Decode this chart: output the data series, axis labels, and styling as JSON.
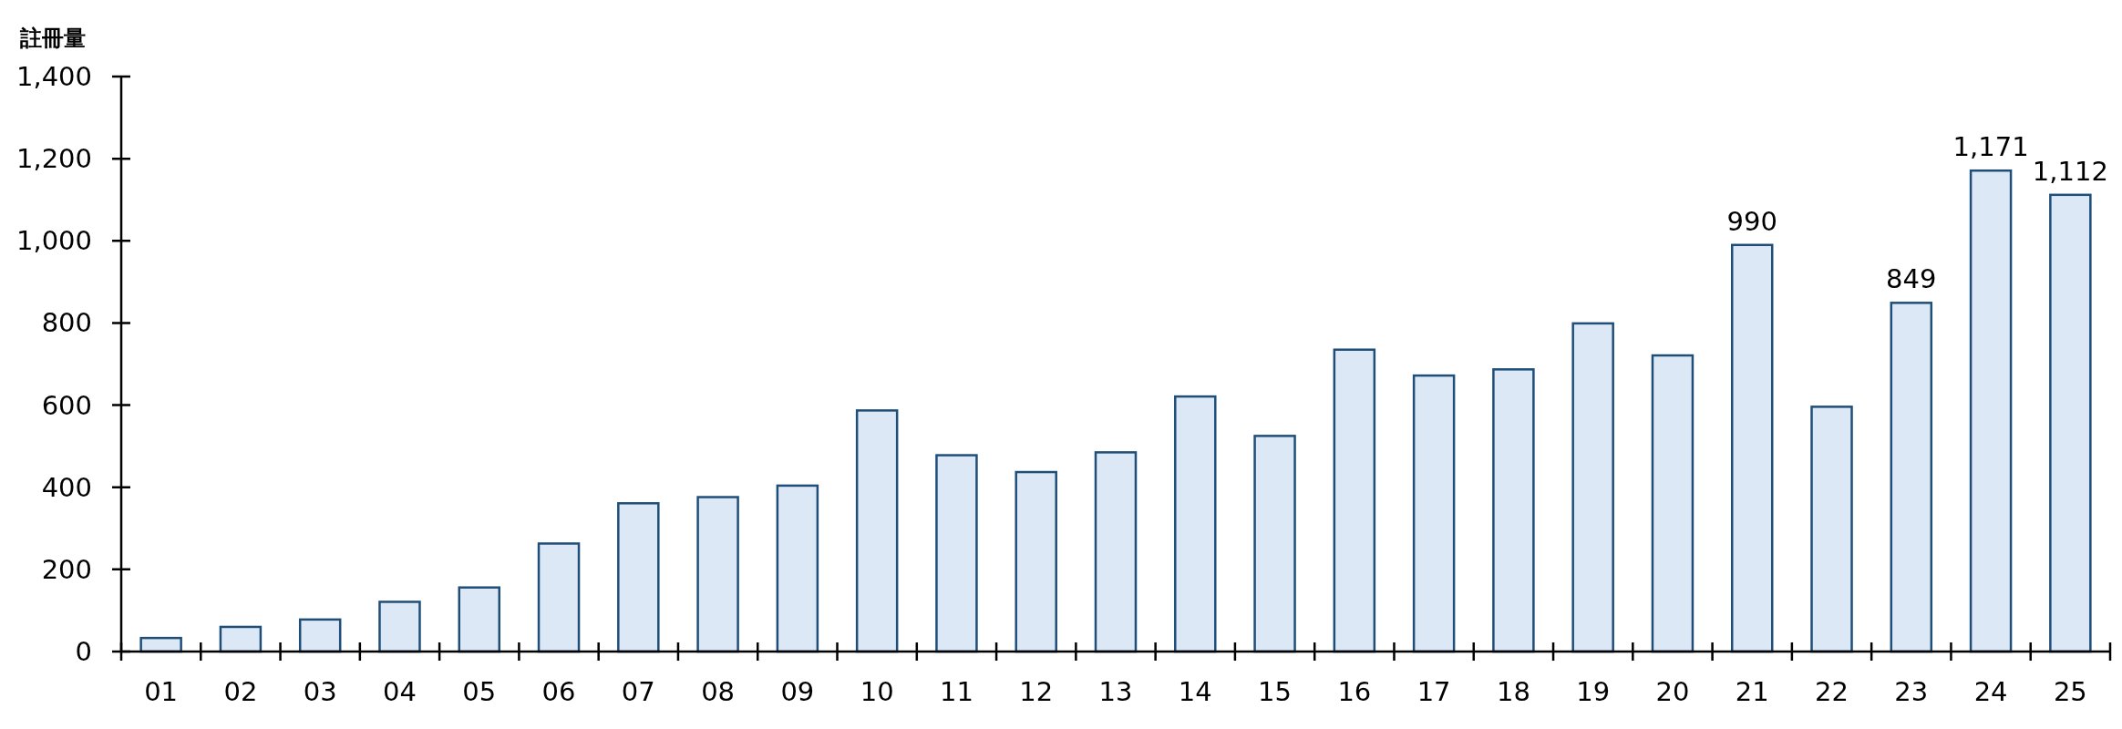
{
  "chart_data": {
    "type": "bar",
    "ylabel": "註冊量",
    "categories": [
      "01",
      "02",
      "03",
      "04",
      "05",
      "06",
      "07",
      "08",
      "09",
      "10",
      "11",
      "12",
      "13",
      "14",
      "15",
      "16",
      "17",
      "18",
      "19",
      "20",
      "21",
      "22",
      "23",
      "24",
      "25"
    ],
    "values": [
      33,
      60,
      78,
      121,
      156,
      263,
      361,
      376,
      404,
      587,
      478,
      437,
      485,
      621,
      525,
      735,
      672,
      687,
      799,
      721,
      990,
      596,
      849,
      1171,
      1112
    ],
    "value_labels": [
      null,
      null,
      null,
      null,
      null,
      null,
      null,
      null,
      null,
      null,
      null,
      null,
      null,
      null,
      null,
      null,
      null,
      null,
      null,
      null,
      "990",
      null,
      "849",
      "1,171",
      "1,112"
    ],
    "color": "#dce8f5",
    "ylim": [
      0,
      1400
    ],
    "yticks": [
      {
        "value": 0,
        "label": "0"
      },
      {
        "value": 200,
        "label": "200"
      },
      {
        "value": 400,
        "label": "400"
      },
      {
        "value": 600,
        "label": "600"
      },
      {
        "value": 800,
        "label": "800"
      },
      {
        "value": 1000,
        "label": "1,000"
      },
      {
        "value": 1200,
        "label": "1,200"
      },
      {
        "value": 1400,
        "label": "1,400"
      }
    ],
    "grid": false
  }
}
